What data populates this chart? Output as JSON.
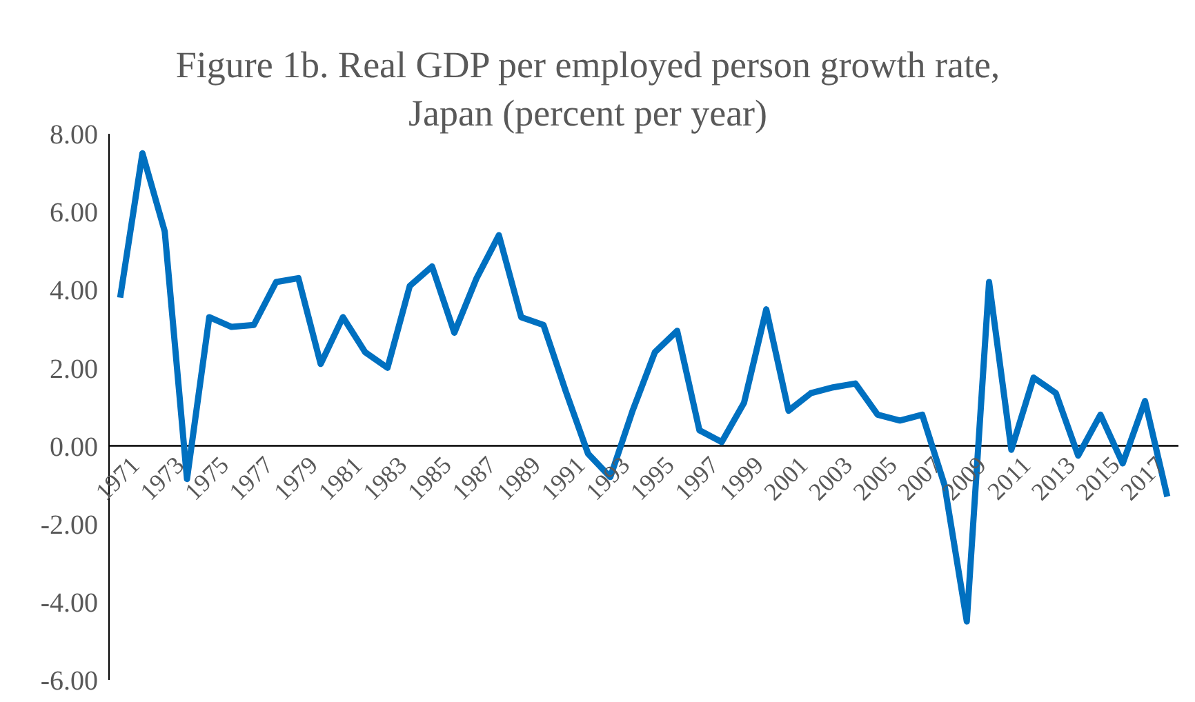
{
  "chart_data": {
    "type": "line",
    "title": "Figure 1b. Real GDP per employed person growth rate, Japan (percent per year)",
    "categories": [
      "1971",
      null,
      "1973",
      null,
      "1975",
      null,
      "1977",
      null,
      "1979",
      null,
      "1981",
      null,
      "1983",
      null,
      "1985",
      null,
      "1987",
      null,
      "1989",
      null,
      "1991",
      null,
      "1993",
      null,
      "1995",
      null,
      "1997",
      null,
      "1999",
      null,
      "2001",
      null,
      "2003",
      null,
      "2005",
      null,
      "2007",
      null,
      "2009",
      null,
      "2011",
      null,
      "2013",
      null,
      "2015",
      null,
      "2017",
      null
    ],
    "series": [
      {
        "color": "#0070c0",
        "values": [
          3.8,
          7.5,
          5.5,
          -0.85,
          3.3,
          3.05,
          3.1,
          4.2,
          4.3,
          2.1,
          3.3,
          2.4,
          2.0,
          4.1,
          4.6,
          2.9,
          4.3,
          5.4,
          3.3,
          3.1,
          1.4,
          -0.2,
          -0.8,
          0.9,
          2.4,
          2.95,
          0.4,
          0.1,
          1.1,
          3.5,
          0.9,
          1.35,
          1.5,
          1.6,
          0.8,
          0.65,
          0.8,
          -1.0,
          -4.5,
          4.2,
          -0.1,
          1.75,
          1.35,
          -0.25,
          0.8,
          -0.45,
          1.15,
          -1.3
        ]
      }
    ],
    "ylim": [
      -6,
      8
    ],
    "yticks": [
      {
        "value": -6,
        "label": "-6.00"
      },
      {
        "value": -4,
        "label": "-4.00"
      },
      {
        "value": -2,
        "label": "-2.00"
      },
      {
        "value": 0,
        "label": "0.00"
      },
      {
        "value": 2,
        "label": "2.00"
      },
      {
        "value": 4,
        "label": "4.00"
      },
      {
        "value": 6,
        "label": "6.00"
      },
      {
        "value": 8,
        "label": "8.00"
      }
    ],
    "grid": false,
    "legend": false,
    "marker": "none",
    "line_style": "solid"
  }
}
